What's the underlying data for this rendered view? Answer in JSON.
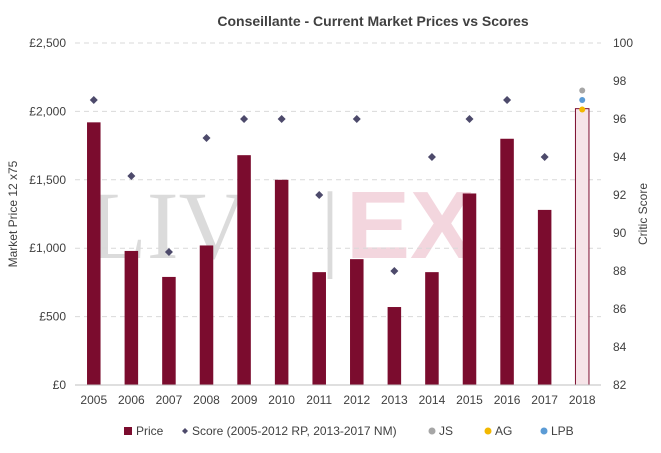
{
  "chart_data": {
    "type": "bar",
    "title": "Conseillante - Current Market Prices vs Scores",
    "ylabel": "Market Price 12 x75",
    "y2label": "Critic Score",
    "watermark": {
      "left": "LIV",
      "sep": "|",
      "right": "EX"
    },
    "categories": [
      "2005",
      "2006",
      "2007",
      "2008",
      "2009",
      "2010",
      "2011",
      "2012",
      "2013",
      "2014",
      "2015",
      "2016",
      "2017",
      "2018"
    ],
    "ylim": [
      0,
      2500
    ],
    "yticks": [
      0,
      500,
      1000,
      1500,
      2000,
      2500
    ],
    "ytick_labels": [
      "£0",
      "£500",
      "£1,000",
      "£1,500",
      "£2,000",
      "£2,500"
    ],
    "y2lim": [
      82,
      100
    ],
    "y2ticks": [
      82,
      84,
      86,
      88,
      90,
      92,
      94,
      96,
      98,
      100
    ],
    "grid": true,
    "legend_position": "bottom",
    "series": [
      {
        "name": "Price",
        "kind": "bar",
        "axis": "left",
        "color": "#7b0c2e",
        "values": [
          1920,
          980,
          790,
          1020,
          1680,
          1500,
          825,
          920,
          570,
          825,
          1400,
          1800,
          1280,
          null
        ]
      },
      {
        "name": "Score (2005-2012 RP, 2013-2017 NM)",
        "kind": "marker",
        "axis": "right",
        "color": "#4d4a6b",
        "values": [
          97,
          93,
          89,
          95,
          96,
          96,
          92,
          96,
          88,
          94,
          96,
          97,
          94,
          null
        ]
      },
      {
        "name": "JS",
        "kind": "dot",
        "axis": "right",
        "color": "#a6a6a6",
        "values": [
          null,
          null,
          null,
          null,
          null,
          null,
          null,
          null,
          null,
          null,
          null,
          null,
          null,
          97.5
        ]
      },
      {
        "name": "AG",
        "kind": "dot",
        "axis": "right",
        "color": "#f2b800",
        "values": [
          null,
          null,
          null,
          null,
          null,
          null,
          null,
          null,
          null,
          null,
          null,
          null,
          null,
          96.5
        ]
      },
      {
        "name": "LPB",
        "kind": "dot",
        "axis": "right",
        "color": "#5b9bd5",
        "values": [
          null,
          null,
          null,
          null,
          null,
          null,
          null,
          null,
          null,
          null,
          null,
          null,
          null,
          97
        ]
      }
    ],
    "estimate_bar": {
      "category": "2018",
      "value": 2020,
      "fill": "#f6e4e8",
      "stroke": "#7b0c2e"
    }
  }
}
